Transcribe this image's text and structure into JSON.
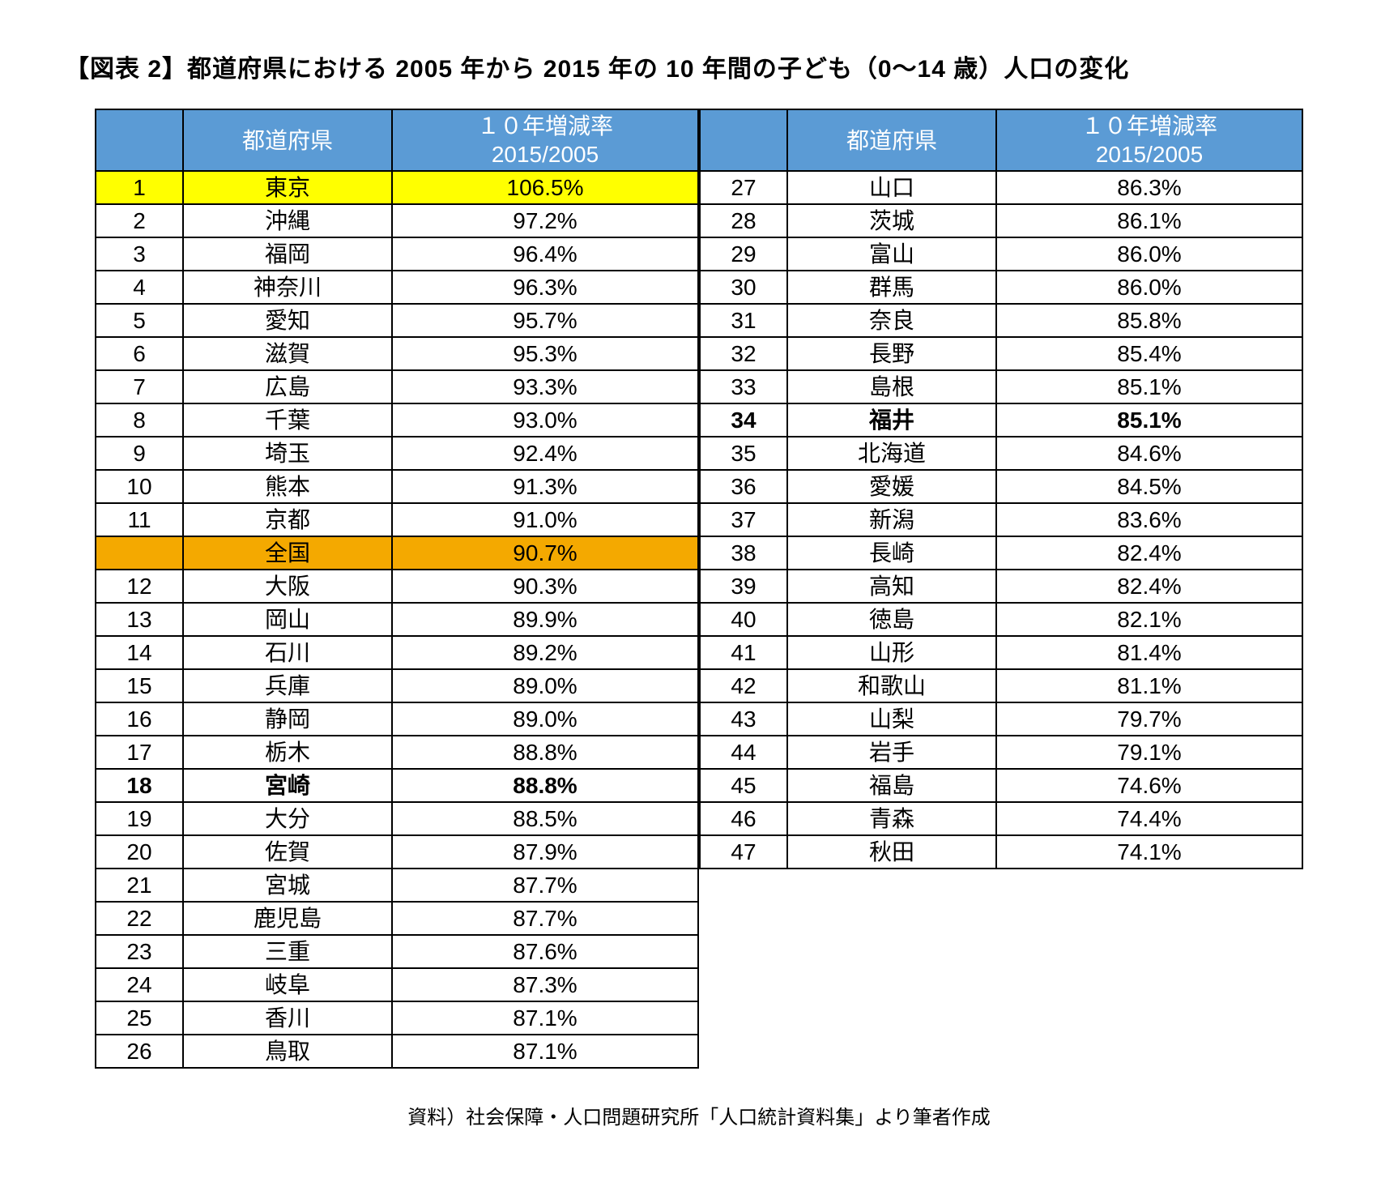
{
  "title": "【図表 2】都道府県における 2005 年から 2015 年の 10 年間の子ども（0〜14 歳）人口の変化",
  "footnote": "資料）社会保障・人口問題研究所「人口統計資料集」より筆者作成",
  "colors": {
    "header_bg": "#5b9bd5",
    "header_fg": "#ffffff",
    "highlight_yellow": "#ffff00",
    "highlight_orange": "#f4a900",
    "border": "#000000",
    "text": "#000000",
    "bg": "#ffffff"
  },
  "columns": {
    "rank": "",
    "pref": "都道府県",
    "rate_line1": "１０年増減率",
    "rate_line2": "2015/2005"
  },
  "layout": {
    "left_rows": 27,
    "right_rows": 21,
    "col_widths": {
      "rank": 90,
      "pref": 240,
      "rate": 360
    },
    "font_size_pt": 21,
    "title_font_size_pt": 22
  },
  "left": [
    {
      "rank": "1",
      "pref": "東京",
      "rate": "106.5%",
      "highlight": "yellow"
    },
    {
      "rank": "2",
      "pref": "沖縄",
      "rate": "97.2%"
    },
    {
      "rank": "3",
      "pref": "福岡",
      "rate": "96.4%"
    },
    {
      "rank": "4",
      "pref": "神奈川",
      "rate": "96.3%"
    },
    {
      "rank": "5",
      "pref": "愛知",
      "rate": "95.7%"
    },
    {
      "rank": "6",
      "pref": "滋賀",
      "rate": "95.3%"
    },
    {
      "rank": "7",
      "pref": "広島",
      "rate": "93.3%"
    },
    {
      "rank": "8",
      "pref": "千葉",
      "rate": "93.0%"
    },
    {
      "rank": "9",
      "pref": "埼玉",
      "rate": "92.4%"
    },
    {
      "rank": "10",
      "pref": "熊本",
      "rate": "91.3%"
    },
    {
      "rank": "11",
      "pref": "京都",
      "rate": "91.0%"
    },
    {
      "rank": "",
      "pref": "全国",
      "rate": "90.7%",
      "highlight": "orange"
    },
    {
      "rank": "12",
      "pref": "大阪",
      "rate": "90.3%"
    },
    {
      "rank": "13",
      "pref": "岡山",
      "rate": "89.9%"
    },
    {
      "rank": "14",
      "pref": "石川",
      "rate": "89.2%"
    },
    {
      "rank": "15",
      "pref": "兵庫",
      "rate": "89.0%"
    },
    {
      "rank": "16",
      "pref": "静岡",
      "rate": "89.0%"
    },
    {
      "rank": "17",
      "pref": "栃木",
      "rate": "88.8%"
    },
    {
      "rank": "18",
      "pref": "宮崎",
      "rate": "88.8%",
      "bold": true
    },
    {
      "rank": "19",
      "pref": "大分",
      "rate": "88.5%"
    },
    {
      "rank": "20",
      "pref": "佐賀",
      "rate": "87.9%"
    },
    {
      "rank": "21",
      "pref": "宮城",
      "rate": "87.7%"
    },
    {
      "rank": "22",
      "pref": "鹿児島",
      "rate": "87.7%"
    },
    {
      "rank": "23",
      "pref": "三重",
      "rate": "87.6%"
    },
    {
      "rank": "24",
      "pref": "岐阜",
      "rate": "87.3%"
    },
    {
      "rank": "25",
      "pref": "香川",
      "rate": "87.1%"
    },
    {
      "rank": "26",
      "pref": "鳥取",
      "rate": "87.1%"
    }
  ],
  "right": [
    {
      "rank": "27",
      "pref": "山口",
      "rate": "86.3%"
    },
    {
      "rank": "28",
      "pref": "茨城",
      "rate": "86.1%"
    },
    {
      "rank": "29",
      "pref": "富山",
      "rate": "86.0%"
    },
    {
      "rank": "30",
      "pref": "群馬",
      "rate": "86.0%"
    },
    {
      "rank": "31",
      "pref": "奈良",
      "rate": "85.8%"
    },
    {
      "rank": "32",
      "pref": "長野",
      "rate": "85.4%"
    },
    {
      "rank": "33",
      "pref": "島根",
      "rate": "85.1%"
    },
    {
      "rank": "34",
      "pref": "福井",
      "rate": "85.1%",
      "bold": true
    },
    {
      "rank": "35",
      "pref": "北海道",
      "rate": "84.6%"
    },
    {
      "rank": "36",
      "pref": "愛媛",
      "rate": "84.5%"
    },
    {
      "rank": "37",
      "pref": "新潟",
      "rate": "83.6%"
    },
    {
      "rank": "38",
      "pref": "長崎",
      "rate": "82.4%"
    },
    {
      "rank": "39",
      "pref": "高知",
      "rate": "82.4%"
    },
    {
      "rank": "40",
      "pref": "徳島",
      "rate": "82.1%"
    },
    {
      "rank": "41",
      "pref": "山形",
      "rate": "81.4%"
    },
    {
      "rank": "42",
      "pref": "和歌山",
      "rate": "81.1%"
    },
    {
      "rank": "43",
      "pref": "山梨",
      "rate": "79.7%"
    },
    {
      "rank": "44",
      "pref": "岩手",
      "rate": "79.1%"
    },
    {
      "rank": "45",
      "pref": "福島",
      "rate": "74.6%"
    },
    {
      "rank": "46",
      "pref": "青森",
      "rate": "74.4%"
    },
    {
      "rank": "47",
      "pref": "秋田",
      "rate": "74.1%"
    }
  ]
}
